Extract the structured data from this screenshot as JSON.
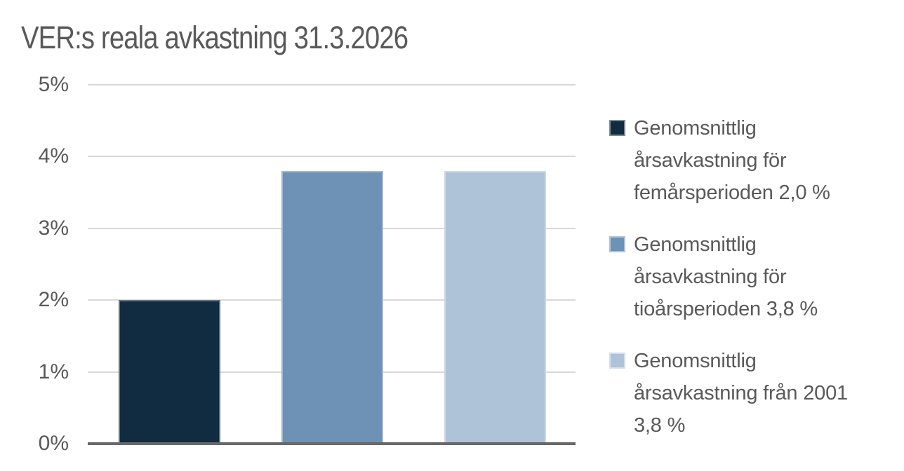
{
  "chart_data": {
    "type": "bar",
    "title": "VER:s reala avkastning 31.3.2026",
    "categories": [
      "Genomsnittlig årsavkastning för femårsperioden",
      "Genomsnittlig årsavkastning för tioårsperioden",
      "Genomsnittlig årsavkastning från 2001"
    ],
    "values": [
      2.0,
      3.8,
      3.8
    ],
    "value_labels": [
      "2,0 %",
      "3,8 %",
      "3,8 %"
    ],
    "bar_colors": [
      "#112c40",
      "#6e92b6",
      "#afc3d8"
    ],
    "xlabel": "",
    "ylabel": "",
    "ylim": [
      0,
      5
    ],
    "ytick_values": [
      0,
      1,
      2,
      3,
      4,
      5
    ],
    "ytick_labels": [
      "0%",
      "1%",
      "2%",
      "3%",
      "4%",
      "5%"
    ],
    "grid": true,
    "legend_position": "right",
    "legend": [
      {
        "color": "#112c40",
        "label": "Genomsnittlig årsavkastning för femårsperioden 2,0 %"
      },
      {
        "color": "#6e92b6",
        "label": "Genomsnittlig årsavkastning för tioårsperioden 3,8 %"
      },
      {
        "color": "#afc3d8",
        "label": "Genomsnittlig årsavkastning från 2001 3,8 %"
      }
    ],
    "colors": {
      "title_text": "#595959",
      "axis_text": "#595959",
      "gridline": "#d9d9d9",
      "axis_line": "#696969",
      "background": "#ffffff"
    }
  }
}
